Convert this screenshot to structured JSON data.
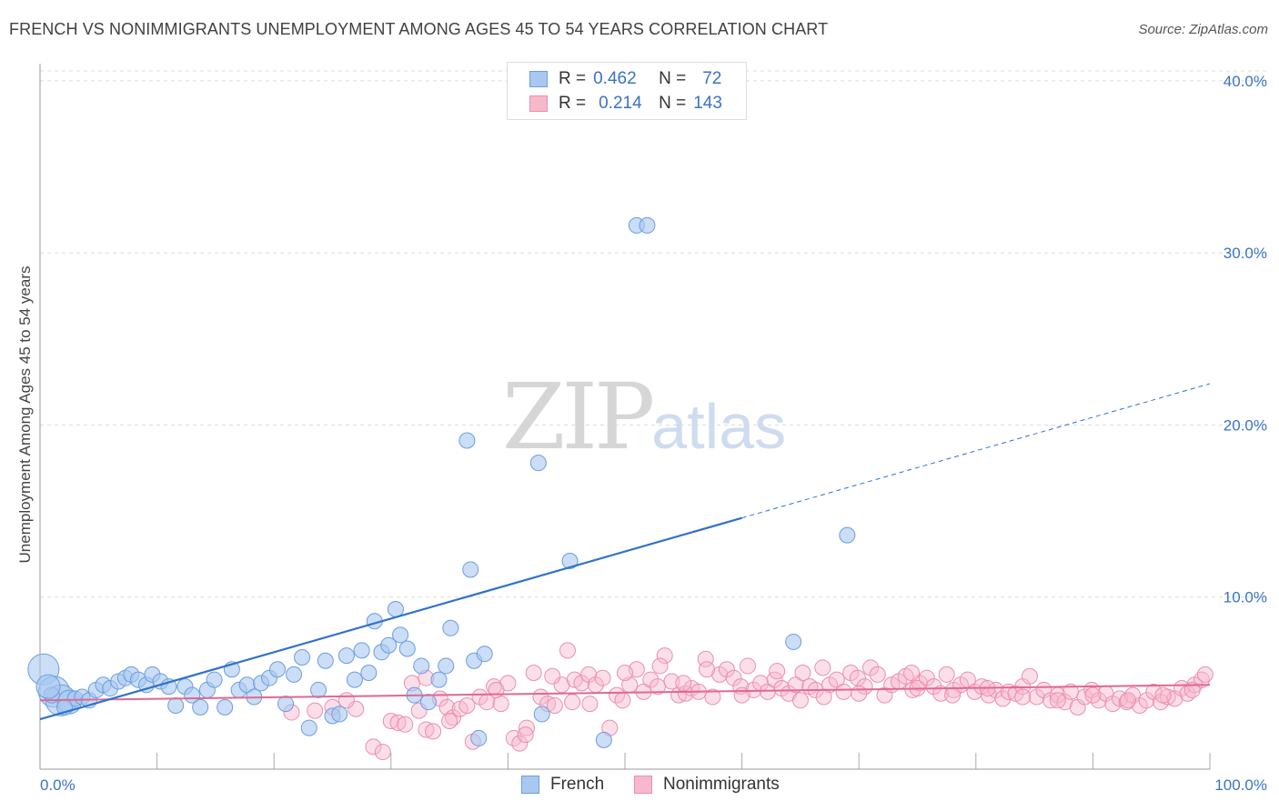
{
  "title": "FRENCH VS NONIMMIGRANTS UNEMPLOYMENT AMONG AGES 45 TO 54 YEARS CORRELATION CHART",
  "source": "Source: ZipAtlas.com",
  "watermark": {
    "zip": "ZIP",
    "atlas": "atlas"
  },
  "legend_top": {
    "r_label": "R =",
    "n_label": "N =",
    "french": {
      "r": "0.462",
      "n": "72"
    },
    "nonimmigrants": {
      "r": "0.214",
      "n": "143"
    }
  },
  "colors": {
    "french_fill": "#a9c8f0",
    "french_stroke": "#6a9de0",
    "french_line": "#2f72cc",
    "nonimm_fill": "#f7b8cb",
    "nonimm_stroke": "#ec8ead",
    "nonimm_line": "#e06891",
    "tick_label": "#3a73c4"
  },
  "chart_data": {
    "type": "scatter",
    "title": "FRENCH VS NONIMMIGRANTS UNEMPLOYMENT AMONG AGES 45 TO 54 YEARS CORRELATION CHART",
    "xlabel": "",
    "ylabel": "Unemployment Among Ages 45 to 54 years",
    "xlim": [
      0,
      100
    ],
    "ylim": [
      0,
      41
    ],
    "x_tick_labels": [
      "0.0%",
      "100.0%"
    ],
    "y_ticks": [
      10,
      20,
      30,
      40
    ],
    "y_tick_labels": [
      "10.0%",
      "20.0%",
      "30.0%",
      "40.0%"
    ],
    "grid": true,
    "legend": "top-center and bottom",
    "series": [
      {
        "name": "French",
        "r": 0.462,
        "n": 72,
        "trend": {
          "x0": 0,
          "y0": 2.9,
          "x1": 60,
          "y1": 14.6,
          "dashed_to_x": 100,
          "dashed_to_y": 22.4
        },
        "points": [
          [
            0.3,
            5.8,
            3
          ],
          [
            1.2,
            4.5,
            3
          ],
          [
            1.8,
            4.0,
            3
          ],
          [
            2.5,
            3.9,
            2
          ],
          [
            3.0,
            4.1,
            1
          ],
          [
            3.6,
            4.2,
            1
          ],
          [
            4.2,
            4.0,
            1
          ],
          [
            4.8,
            4.6,
            1
          ],
          [
            5.4,
            4.9,
            1
          ],
          [
            6.0,
            4.7,
            1
          ],
          [
            6.7,
            5.1,
            1
          ],
          [
            7.3,
            5.3,
            1
          ],
          [
            7.8,
            5.5,
            1
          ],
          [
            8.4,
            5.2,
            1
          ],
          [
            9.1,
            4.9,
            1
          ],
          [
            9.6,
            5.5,
            1
          ],
          [
            10.3,
            5.1,
            1
          ],
          [
            11.0,
            4.8,
            1
          ],
          [
            11.6,
            3.7,
            1
          ],
          [
            12.4,
            4.8,
            1
          ],
          [
            13.0,
            4.3,
            1
          ],
          [
            13.7,
            3.6,
            1
          ],
          [
            14.3,
            4.6,
            1
          ],
          [
            14.9,
            5.2,
            1
          ],
          [
            15.8,
            3.6,
            1
          ],
          [
            16.4,
            5.8,
            1
          ],
          [
            17.0,
            4.6,
            1
          ],
          [
            17.7,
            4.9,
            1
          ],
          [
            18.3,
            4.2,
            1
          ],
          [
            18.9,
            5.0,
            1
          ],
          [
            19.6,
            5.3,
            1
          ],
          [
            20.3,
            5.8,
            1
          ],
          [
            21.0,
            3.8,
            1
          ],
          [
            21.7,
            5.5,
            1
          ],
          [
            22.4,
            6.5,
            1
          ],
          [
            23.0,
            2.4,
            1
          ],
          [
            23.8,
            4.6,
            1
          ],
          [
            24.4,
            6.3,
            1
          ],
          [
            25.0,
            3.1,
            1
          ],
          [
            25.6,
            3.2,
            1
          ],
          [
            26.2,
            6.6,
            1
          ],
          [
            26.9,
            5.2,
            1
          ],
          [
            27.5,
            6.9,
            1
          ],
          [
            28.1,
            5.6,
            1
          ],
          [
            28.6,
            8.6,
            1
          ],
          [
            29.2,
            6.8,
            1
          ],
          [
            29.8,
            7.2,
            1
          ],
          [
            30.4,
            9.3,
            1
          ],
          [
            30.8,
            7.8,
            1
          ],
          [
            31.4,
            7.0,
            1
          ],
          [
            32.0,
            4.3,
            1
          ],
          [
            32.6,
            6.0,
            1
          ],
          [
            33.2,
            3.9,
            1
          ],
          [
            34.1,
            5.2,
            1
          ],
          [
            34.7,
            6.0,
            1
          ],
          [
            35.1,
            8.2,
            1
          ],
          [
            36.5,
            19.1,
            1
          ],
          [
            36.8,
            11.6,
            1
          ],
          [
            37.1,
            6.3,
            1
          ],
          [
            37.5,
            1.8,
            1
          ],
          [
            38.0,
            6.7,
            1
          ],
          [
            42.6,
            17.8,
            1
          ],
          [
            42.9,
            3.2,
            1
          ],
          [
            45.3,
            12.1,
            1
          ],
          [
            48.2,
            1.7,
            1
          ],
          [
            51.0,
            31.6,
            1
          ],
          [
            51.9,
            31.6,
            1
          ],
          [
            64.4,
            7.4,
            1
          ],
          [
            69.0,
            13.6,
            1
          ],
          [
            1.0,
            4.3,
            1
          ],
          [
            2.1,
            3.6,
            1
          ],
          [
            0.7,
            4.8,
            2
          ]
        ]
      },
      {
        "name": "Nonimmigrants",
        "r": 0.214,
        "n": 143,
        "trend": {
          "x0": 0,
          "y0": 4.0,
          "x1": 100,
          "y1": 4.9
        },
        "points": [
          [
            21.5,
            3.3
          ],
          [
            25.0,
            3.6
          ],
          [
            27.0,
            3.5
          ],
          [
            28.5,
            1.3
          ],
          [
            29.3,
            1.0
          ],
          [
            30.0,
            2.8
          ],
          [
            30.6,
            2.7
          ],
          [
            31.2,
            2.6
          ],
          [
            31.8,
            5.0
          ],
          [
            32.4,
            3.4
          ],
          [
            33.0,
            2.3
          ],
          [
            33.6,
            2.2
          ],
          [
            34.2,
            4.1
          ],
          [
            34.8,
            3.6
          ],
          [
            35.3,
            3.0
          ],
          [
            35.9,
            3.5
          ],
          [
            36.5,
            3.7
          ],
          [
            37.0,
            1.6
          ],
          [
            37.6,
            4.2
          ],
          [
            38.2,
            3.9
          ],
          [
            38.8,
            4.8
          ],
          [
            39.4,
            3.8
          ],
          [
            40.0,
            5.0
          ],
          [
            40.5,
            1.8
          ],
          [
            41.0,
            1.5
          ],
          [
            41.6,
            2.4
          ],
          [
            42.2,
            5.6
          ],
          [
            42.8,
            4.2
          ],
          [
            43.4,
            3.8
          ],
          [
            44.0,
            3.7
          ],
          [
            44.6,
            4.9
          ],
          [
            45.1,
            6.9
          ],
          [
            45.7,
            5.2
          ],
          [
            46.3,
            5.0
          ],
          [
            46.9,
            5.5
          ],
          [
            47.5,
            4.9
          ],
          [
            48.1,
            5.3
          ],
          [
            48.7,
            2.4
          ],
          [
            49.3,
            4.3
          ],
          [
            49.8,
            4.0
          ],
          [
            50.4,
            4.9
          ],
          [
            51.0,
            5.8
          ],
          [
            51.6,
            4.5
          ],
          [
            52.2,
            5.2
          ],
          [
            52.8,
            4.8
          ],
          [
            53.4,
            6.6
          ],
          [
            54.0,
            5.1
          ],
          [
            54.6,
            4.3
          ],
          [
            55.2,
            4.4
          ],
          [
            55.7,
            4.7
          ],
          [
            56.3,
            4.5
          ],
          [
            56.9,
            6.4
          ],
          [
            57.5,
            4.2
          ],
          [
            58.1,
            5.5
          ],
          [
            58.7,
            5.8
          ],
          [
            59.3,
            5.3
          ],
          [
            59.9,
            4.8
          ],
          [
            60.5,
            6.0
          ],
          [
            61.0,
            4.6
          ],
          [
            61.6,
            5.0
          ],
          [
            62.2,
            4.5
          ],
          [
            62.8,
            5.2
          ],
          [
            63.4,
            4.7
          ],
          [
            64.0,
            4.4
          ],
          [
            64.6,
            4.9
          ],
          [
            65.2,
            5.6
          ],
          [
            65.8,
            4.8
          ],
          [
            66.3,
            4.6
          ],
          [
            66.9,
            5.9
          ],
          [
            67.5,
            4.9
          ],
          [
            68.1,
            5.2
          ],
          [
            68.7,
            4.5
          ],
          [
            69.3,
            5.6
          ],
          [
            69.9,
            5.3
          ],
          [
            70.5,
            4.8
          ],
          [
            71.0,
            5.9
          ],
          [
            71.6,
            5.5
          ],
          [
            72.2,
            4.3
          ],
          [
            72.8,
            4.9
          ],
          [
            73.4,
            5.1
          ],
          [
            74.0,
            5.4
          ],
          [
            74.6,
            4.6
          ],
          [
            75.2,
            5.0
          ],
          [
            75.8,
            5.3
          ],
          [
            76.4,
            4.8
          ],
          [
            77.0,
            4.4
          ],
          [
            77.5,
            5.5
          ],
          [
            78.1,
            4.6
          ],
          [
            78.7,
            4.9
          ],
          [
            79.3,
            5.2
          ],
          [
            79.9,
            4.5
          ],
          [
            80.5,
            4.8
          ],
          [
            81.1,
            4.3
          ],
          [
            81.7,
            4.6
          ],
          [
            82.3,
            4.1
          ],
          [
            82.8,
            4.5
          ],
          [
            83.4,
            4.4
          ],
          [
            84.0,
            4.8
          ],
          [
            84.6,
            5.4
          ],
          [
            85.2,
            4.2
          ],
          [
            85.8,
            4.6
          ],
          [
            86.4,
            4.0
          ],
          [
            87.0,
            4.3
          ],
          [
            87.6,
            3.9
          ],
          [
            88.1,
            4.5
          ],
          [
            88.7,
            3.6
          ],
          [
            89.3,
            4.2
          ],
          [
            89.9,
            4.6
          ],
          [
            90.5,
            4.0
          ],
          [
            91.1,
            4.4
          ],
          [
            91.7,
            3.8
          ],
          [
            92.3,
            4.1
          ],
          [
            92.9,
            3.9
          ],
          [
            93.4,
            4.3
          ],
          [
            94.0,
            3.7
          ],
          [
            94.6,
            4.0
          ],
          [
            95.2,
            4.5
          ],
          [
            95.8,
            3.9
          ],
          [
            96.4,
            4.2
          ],
          [
            97.0,
            4.1
          ],
          [
            97.6,
            4.7
          ],
          [
            98.1,
            4.4
          ],
          [
            98.7,
            4.9
          ],
          [
            99.3,
            5.2
          ],
          [
            99.6,
            5.5
          ],
          [
            23.5,
            3.4
          ],
          [
            26.2,
            4.0
          ],
          [
            33.0,
            5.3
          ],
          [
            39.0,
            4.6
          ],
          [
            43.8,
            5.4
          ],
          [
            47.0,
            3.8
          ],
          [
            53.0,
            6.0
          ],
          [
            57.0,
            5.8
          ],
          [
            60.0,
            4.3
          ],
          [
            63.0,
            5.7
          ],
          [
            67.0,
            4.2
          ],
          [
            70.0,
            4.4
          ],
          [
            74.5,
            5.6
          ],
          [
            78.0,
            4.3
          ],
          [
            81.0,
            4.7
          ],
          [
            84.0,
            4.2
          ],
          [
            87.0,
            4.0
          ],
          [
            90.0,
            4.3
          ],
          [
            93.0,
            4.0
          ],
          [
            96.0,
            4.3
          ],
          [
            98.5,
            4.6
          ],
          [
            35.0,
            2.8
          ],
          [
            41.5,
            2.0
          ],
          [
            45.5,
            3.9
          ],
          [
            50.0,
            5.6
          ],
          [
            55.0,
            5.0
          ],
          [
            65.0,
            4.0
          ],
          [
            75.0,
            4.7
          ]
        ]
      }
    ]
  },
  "legend_bottom": {
    "french": "French",
    "nonimmigrants": "Nonimmigrants"
  }
}
